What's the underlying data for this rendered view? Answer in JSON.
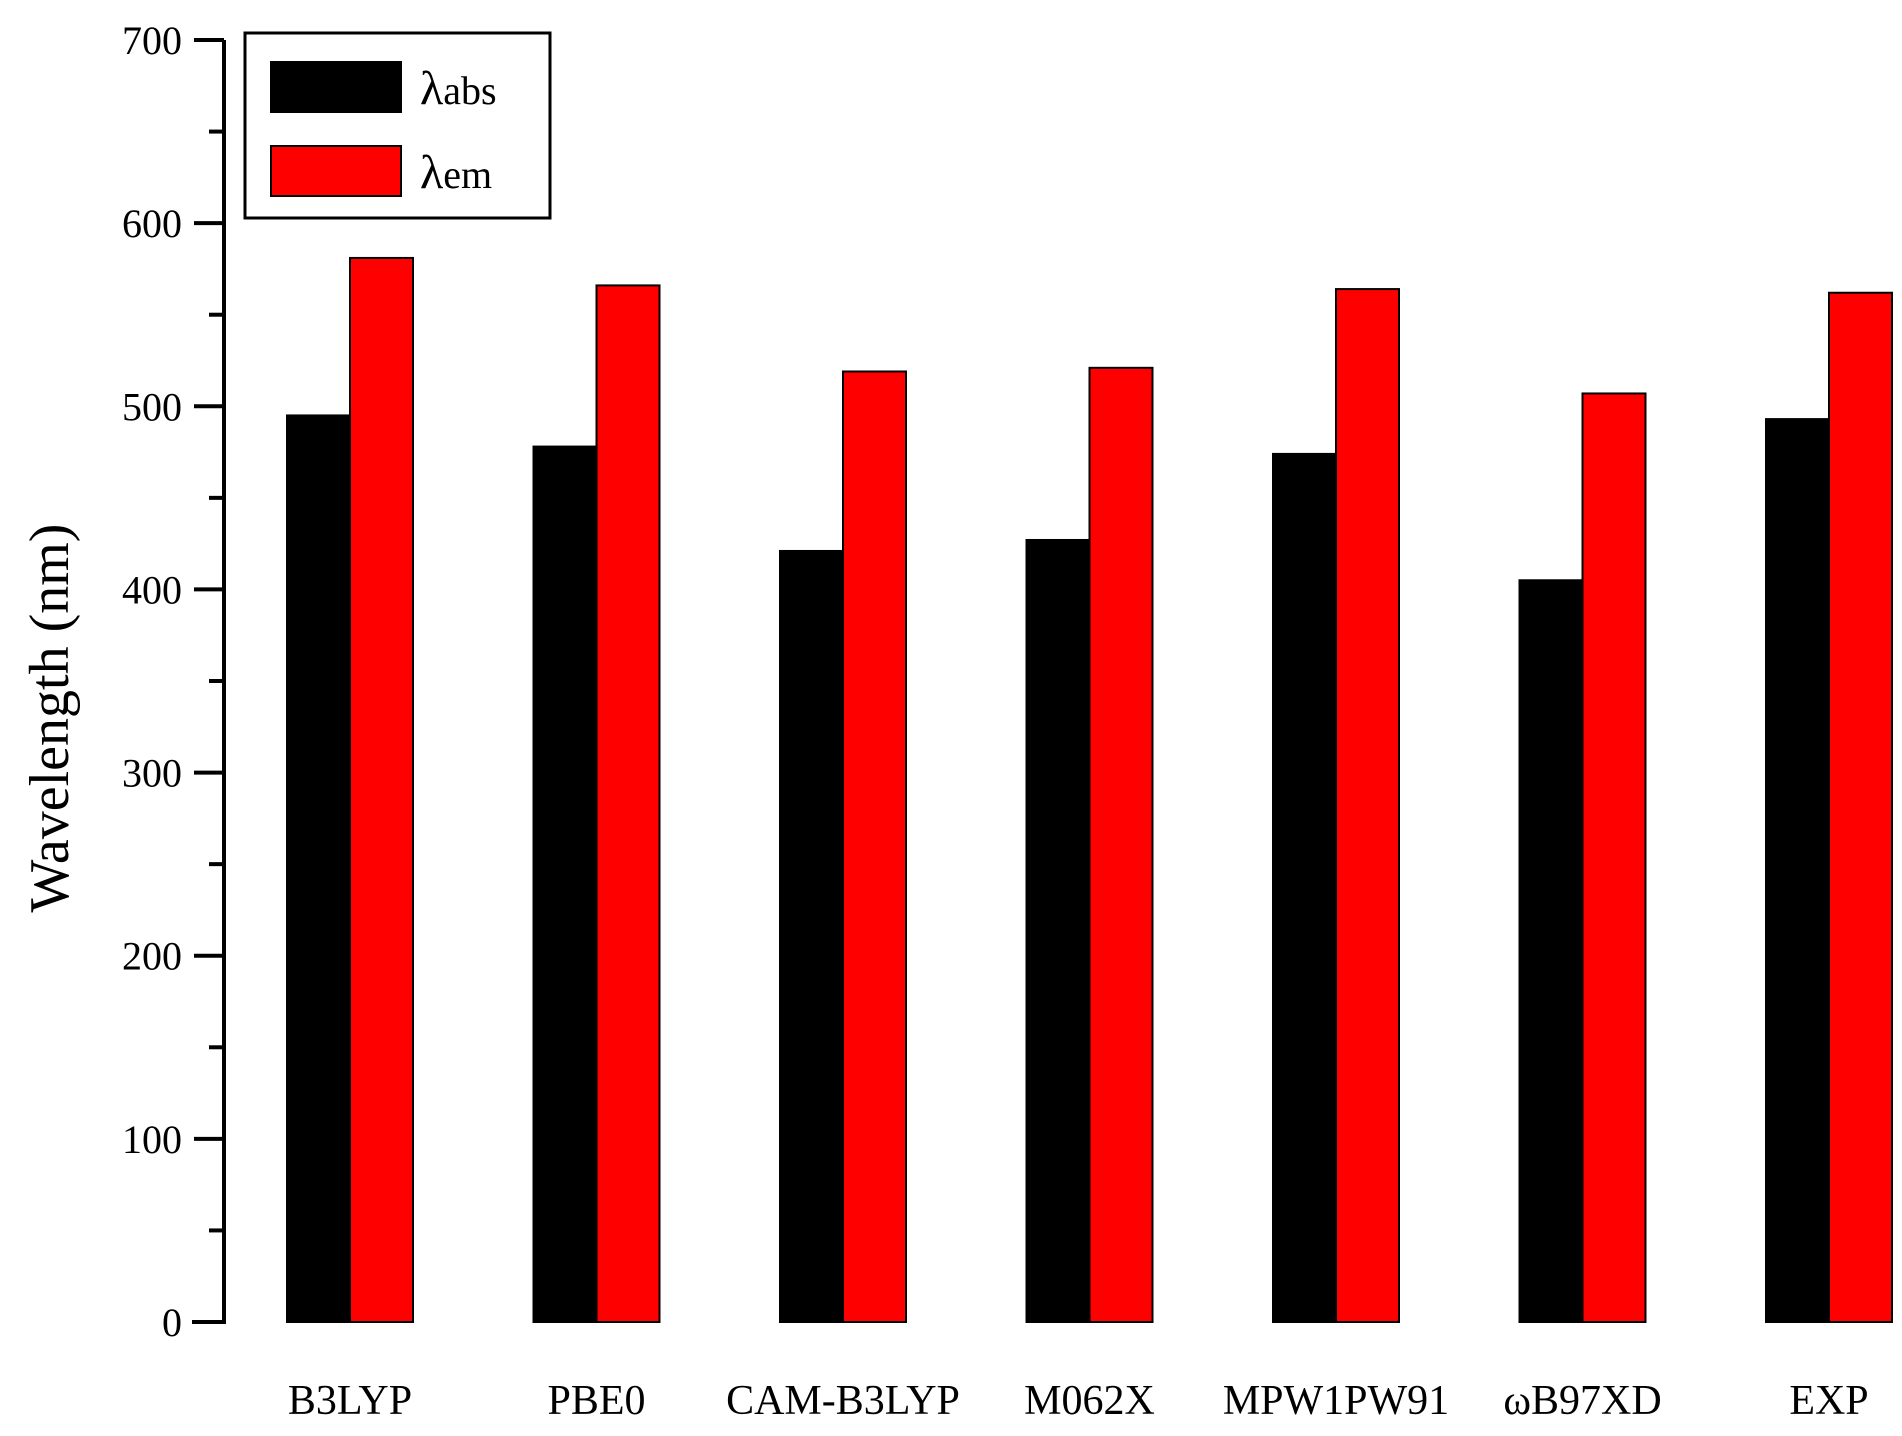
{
  "chart_data": {
    "type": "bar",
    "title": "",
    "xlabel": "",
    "ylabel": "Wavelength (nm)",
    "ylim": [
      0,
      700
    ],
    "yticks": [
      0,
      100,
      200,
      300,
      400,
      500,
      600,
      700
    ],
    "categories": [
      "B3LYP",
      "PBE0",
      "CAM-B3LYP",
      "M062X",
      "MPW1PW91",
      "ωB97XD",
      "EXP"
    ],
    "series": [
      {
        "name": "λabs",
        "legend_symbol": "λ",
        "legend_text": "abs",
        "color": "#000000",
        "values": [
          495,
          478,
          421,
          427,
          474,
          405,
          493
        ]
      },
      {
        "name": "λem",
        "legend_symbol": "λ",
        "legend_text": "em",
        "color": "#ff0000",
        "values": [
          581,
          566,
          519,
          521,
          564,
          507,
          562
        ]
      }
    ],
    "legend": {
      "position": "top-left"
    },
    "grid": false
  }
}
